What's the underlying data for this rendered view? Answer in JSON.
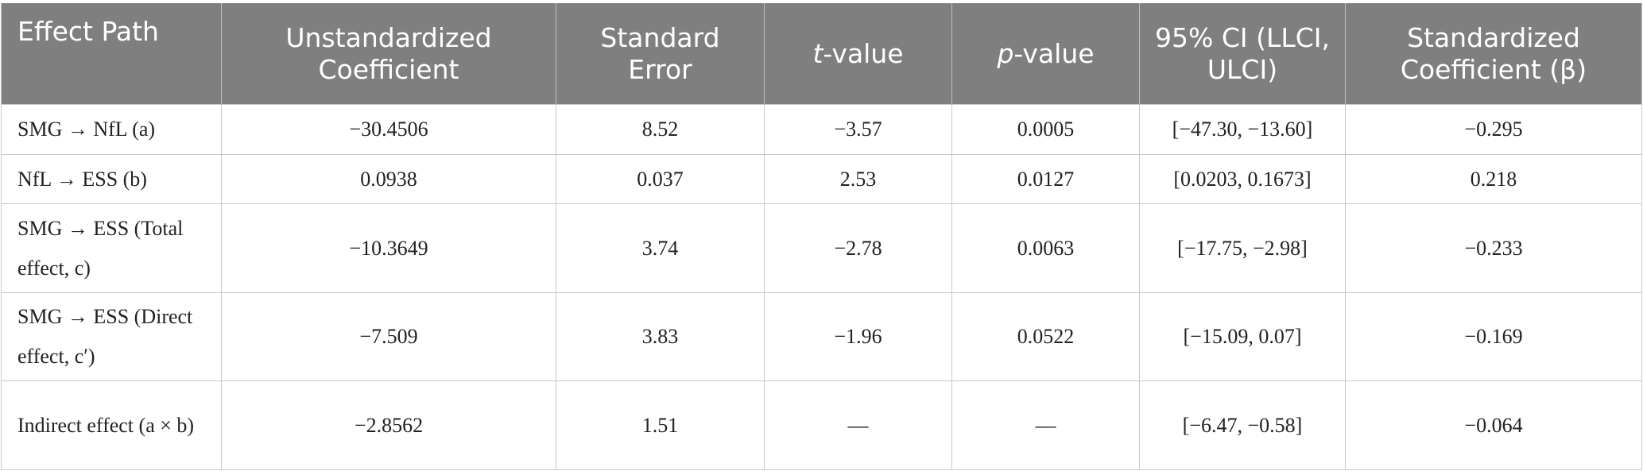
{
  "table": {
    "header": [
      "Effect Path",
      "Unstandardized Coefficient",
      "Standard Error",
      {
        "italic": "t",
        "text": "-value"
      },
      {
        "italic": "p",
        "text": "-value"
      },
      "95% CI (LLCI, ULCI)",
      "Standardized Coefficient (β)"
    ],
    "rows": [
      [
        "SMG → NfL (a)",
        "−30.4506",
        "8.52",
        "−3.57",
        "0.0005",
        "[−47.30, −13.60]",
        "−0.295"
      ],
      [
        "NfL → ESS (b)",
        "0.0938",
        "0.037",
        "2.53",
        "0.0127",
        "[0.0203, 0.1673]",
        "0.218"
      ],
      [
        "SMG → ESS (Total effect, c)",
        "−10.3649",
        "3.74",
        "−2.78",
        "0.0063",
        "[−17.75, −2.98]",
        "−0.233"
      ],
      [
        "SMG → ESS (Direct effect, c′)",
        "−7.509",
        "3.83",
        "−1.96",
        "0.0522",
        "[−15.09, 0.07]",
        "−0.169"
      ],
      [
        "Indirect effect (a × b)",
        "−2.8562",
        "1.51",
        "—",
        "—",
        "[−6.47, −0.58]",
        "−0.064"
      ]
    ]
  }
}
